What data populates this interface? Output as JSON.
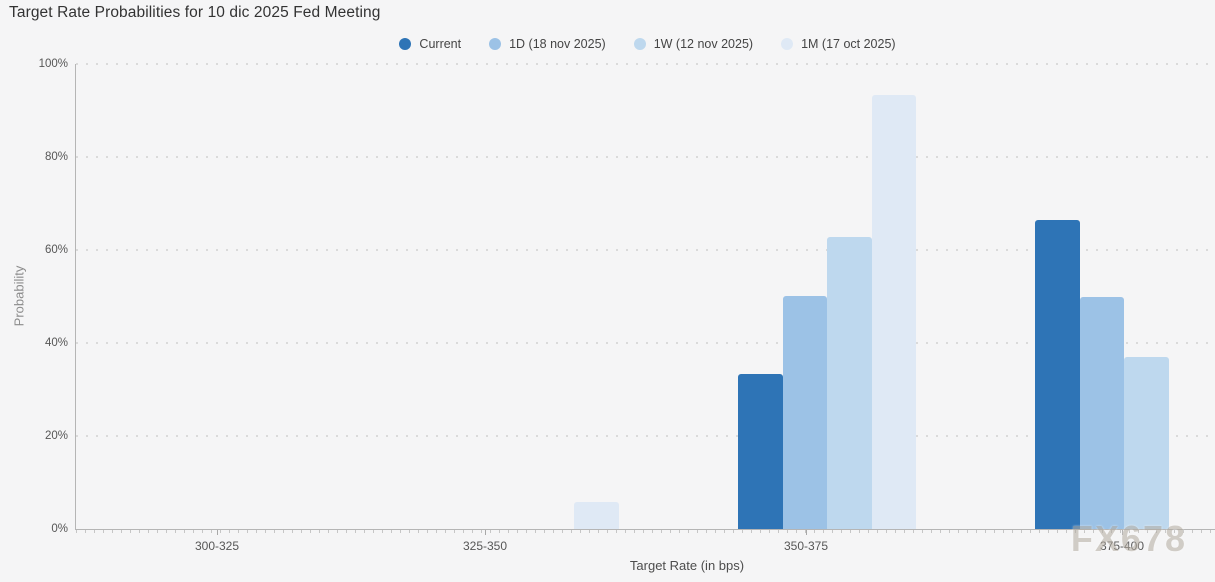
{
  "title": "Target Rate Probabilities for 10 dic 2025 Fed Meeting",
  "watermark": "FX678",
  "legend": [
    {
      "key": "current",
      "label": "Current",
      "color": "#2e74b6"
    },
    {
      "key": "1d",
      "label": "1D (18 nov 2025)",
      "color": "#9cc2e6"
    },
    {
      "key": "1w",
      "label": "1W (12 nov 2025)",
      "color": "#bed8ee"
    },
    {
      "key": "1m",
      "label": "1M (17 oct 2025)",
      "color": "#dfe9f5"
    }
  ],
  "chart_data": {
    "type": "bar",
    "title": "Target Rate Probabilities for 10 dic 2025 Fed Meeting",
    "categories": [
      "300-325",
      "325-350",
      "350-375",
      "375-400"
    ],
    "series": [
      {
        "key": "current",
        "name": "Current",
        "color": "#2e74b6",
        "values": [
          0,
          0,
          33.4,
          66.6
        ]
      },
      {
        "key": "1d",
        "name": "1D (18 nov 2025)",
        "color": "#9cc2e6",
        "values": [
          0,
          0,
          50.1,
          49.9
        ]
      },
      {
        "key": "1w",
        "name": "1W (12 nov 2025)",
        "color": "#bed8ee",
        "values": [
          0,
          0,
          62.9,
          37.1
        ]
      },
      {
        "key": "1m",
        "name": "1M (17 oct 2025)",
        "color": "#dfe9f5",
        "values": [
          0,
          5.8,
          93.5,
          0
        ]
      }
    ],
    "xlabel": "Target Rate (in bps)",
    "ylabel": "Probability",
    "ylim": [
      0,
      100
    ],
    "yticks": [
      "0%",
      "20%",
      "40%",
      "60%",
      "80%",
      "100%"
    ],
    "grid": "horizontal dotted",
    "legend_position": "top-center"
  }
}
